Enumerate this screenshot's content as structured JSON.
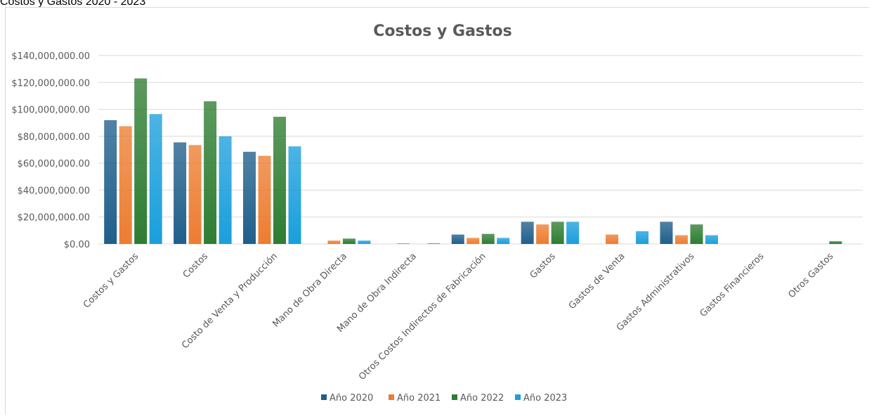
{
  "sheet_caption": "Costos y Gastos 2020 - 2023",
  "chart_data": {
    "type": "bar",
    "title": "Costos y Gastos",
    "xlabel": "",
    "ylabel": "",
    "ylim": [
      0,
      140000000
    ],
    "yticks": [
      0,
      20000000,
      40000000,
      60000000,
      80000000,
      100000000,
      120000000,
      140000000
    ],
    "ytick_labels": [
      "$0.00",
      "$20,000,000.00",
      "$40,000,000.00",
      "$60,000,000.00",
      "$80,000,000.00",
      "$100,000,000.00",
      "$120,000,000.00",
      "$140,000,000.00"
    ],
    "grid": true,
    "legend_position": "bottom",
    "categories": [
      "Costos y Gastos",
      "Costos",
      "Costo de Venta y Producción",
      "Mano de Obra Directa",
      "Mano de Obra Indirecta",
      "Otros Costos Indirectos de Fabricación",
      "Gastos",
      "Gastos de Venta",
      "Gastos Administrativos",
      "Gastos Financieros",
      "Otros Gastos"
    ],
    "series": [
      {
        "name": "Año 2020",
        "color": "#1f5f8b",
        "values": [
          92000000,
          75500000,
          68500000,
          0,
          0,
          7000000,
          16500000,
          0,
          16500000,
          0,
          0
        ]
      },
      {
        "name": "Año 2021",
        "color": "#ed7d31",
        "values": [
          87500000,
          73500000,
          65500000,
          2500000,
          500000,
          4500000,
          14500000,
          7000000,
          6500000,
          0,
          0
        ]
      },
      {
        "name": "Año 2022",
        "color": "#2e7d32",
        "values": [
          123000000,
          106000000,
          94500000,
          4000000,
          0,
          7500000,
          16500000,
          0,
          14500000,
          0,
          2000000
        ]
      },
      {
        "name": "Año 2023",
        "color": "#1a9fdc",
        "values": [
          96500000,
          80000000,
          72500000,
          2500000,
          500000,
          4500000,
          16500000,
          9500000,
          6500000,
          0,
          0
        ]
      }
    ]
  }
}
